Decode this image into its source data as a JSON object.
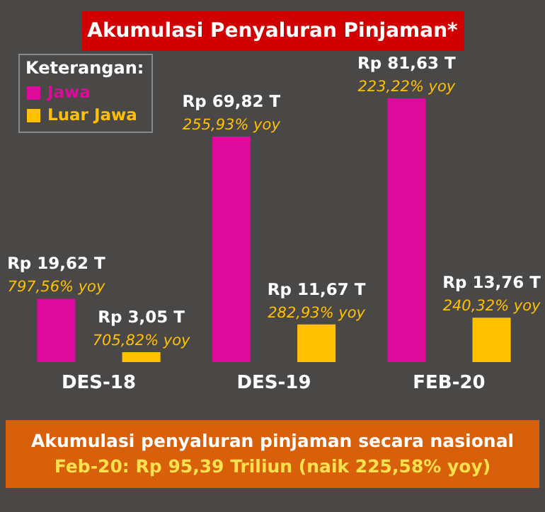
{
  "chart_data": {
    "type": "bar",
    "title": "Akumulasi Penyaluran Pinjaman*",
    "legend_title": "Keterangan:",
    "legend": "top left",
    "categories": [
      "DES-18",
      "DES-19",
      "FEB-20"
    ],
    "series": [
      {
        "name": "Jawa",
        "color": "#de0a9c",
        "values": [
          19.62,
          69.82,
          81.63
        ],
        "value_labels": [
          "Rp 19,62 T",
          "Rp 69,82 T",
          "Rp 81,63 T"
        ]
      },
      {
        "name": "Luar Jawa",
        "color": "#ffc000",
        "values": [
          3.05,
          11.67,
          13.76
        ],
        "value_labels": [
          "Rp 3,05 T",
          "Rp 11,67 T",
          "Rp 13,76 T"
        ]
      }
    ],
    "annotations": [
      "797,56% yoy",
      "255,93% yoy",
      "223,22% yoy",
      "705,82% yoy",
      "282,93% yoy",
      "240,32% yoy",
      "Akumulasi penyaluran pinjaman secara nasional",
      "Feb-20: Rp 95,39 Triliun (naik 225,58% yoy)"
    ]
  }
}
